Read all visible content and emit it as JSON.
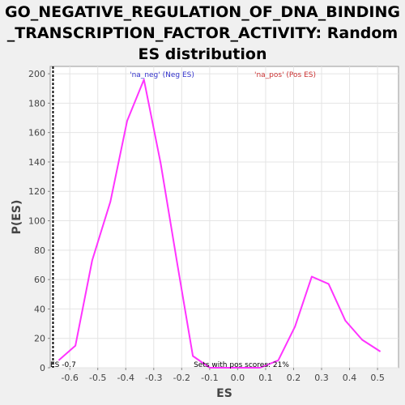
{
  "chart_data": {
    "type": "line",
    "title_lines": [
      "GO_NEGATIVE_REGULATION_OF_DNA_BINDING",
      "_TRANSCRIPTION_FACTOR_ACTIVITY: Random",
      "ES distribution"
    ],
    "xlabel": "ES",
    "ylabel": "P(ES)",
    "xlim": [
      -0.67,
      0.575
    ],
    "ylim": [
      0,
      205
    ],
    "x_ticks": [
      -0.6,
      -0.5,
      -0.4,
      -0.3,
      -0.2,
      -0.1,
      0.0,
      0.1,
      0.2,
      0.3,
      0.4,
      0.5
    ],
    "x_tick_labels": [
      "-0.6",
      "-0.5",
      "-0.4",
      "-0.3",
      "-0.2",
      "-0.1",
      "0.0",
      "0.1",
      "0.2",
      "0.3",
      "0.4",
      "0.5"
    ],
    "y_ticks": [
      0,
      20,
      40,
      60,
      80,
      100,
      120,
      140,
      160,
      180,
      200
    ],
    "y_tick_labels": [
      "0",
      "20",
      "40",
      "60",
      "80",
      "100",
      "120",
      "140",
      "160",
      "180",
      "200"
    ],
    "grid": true,
    "series": [
      {
        "color": "#ff33ff",
        "x": [
          -0.64,
          -0.58,
          -0.52,
          -0.455,
          -0.395,
          -0.335,
          -0.275,
          -0.215,
          -0.16,
          -0.1,
          0.02,
          0.08,
          0.145,
          0.205,
          0.265,
          0.325,
          0.385,
          0.445,
          0.51
        ],
        "y": [
          5,
          15,
          73,
          113,
          168,
          196,
          139,
          70,
          8,
          0,
          0,
          0,
          5,
          28,
          62,
          57,
          32,
          19,
          11
        ]
      }
    ],
    "annotations": {
      "neg_label": {
        "text": "'na_neg' (Neg ES)",
        "color": "#3333cc"
      },
      "pos_label": {
        "text": "'na_pos' (Pos ES)",
        "color": "#cc3333"
      },
      "es_marker": {
        "text": "ES -0.7",
        "x": -0.66,
        "color": "#000000"
      },
      "footer": {
        "text": "Sets with pos scores: 21%",
        "color": "#000000"
      }
    }
  }
}
